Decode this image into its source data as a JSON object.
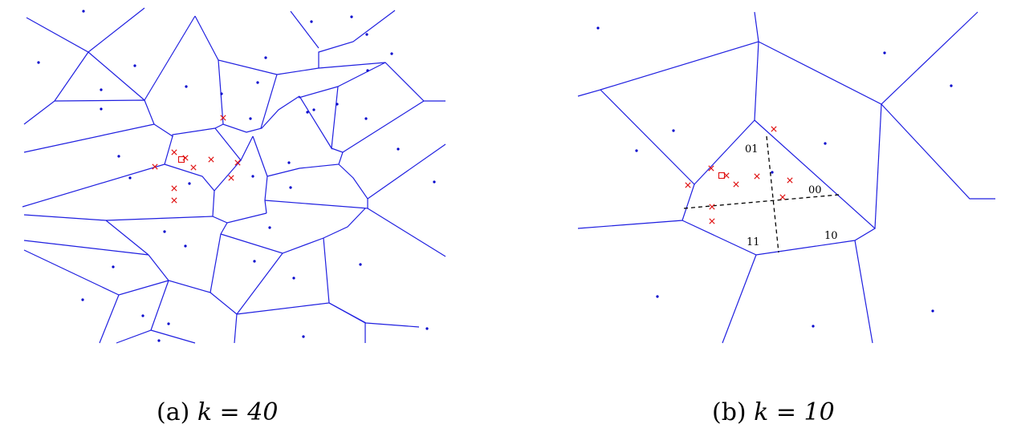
{
  "colors": {
    "edges": "#1f1fe0",
    "sites": "#0000cc",
    "queries": "#e01010",
    "partition": "#000000"
  },
  "panels": [
    {
      "id": "a",
      "caption": {
        "prefix": "(a) ",
        "expr": "k = 40"
      }
    },
    {
      "id": "b",
      "caption": {
        "prefix": "(b) ",
        "expr": "k = 10"
      },
      "region_labels": [
        "01",
        "00",
        "11",
        "10"
      ]
    }
  ],
  "markers": {
    "site": "point",
    "query": "cross",
    "target": "square"
  }
}
